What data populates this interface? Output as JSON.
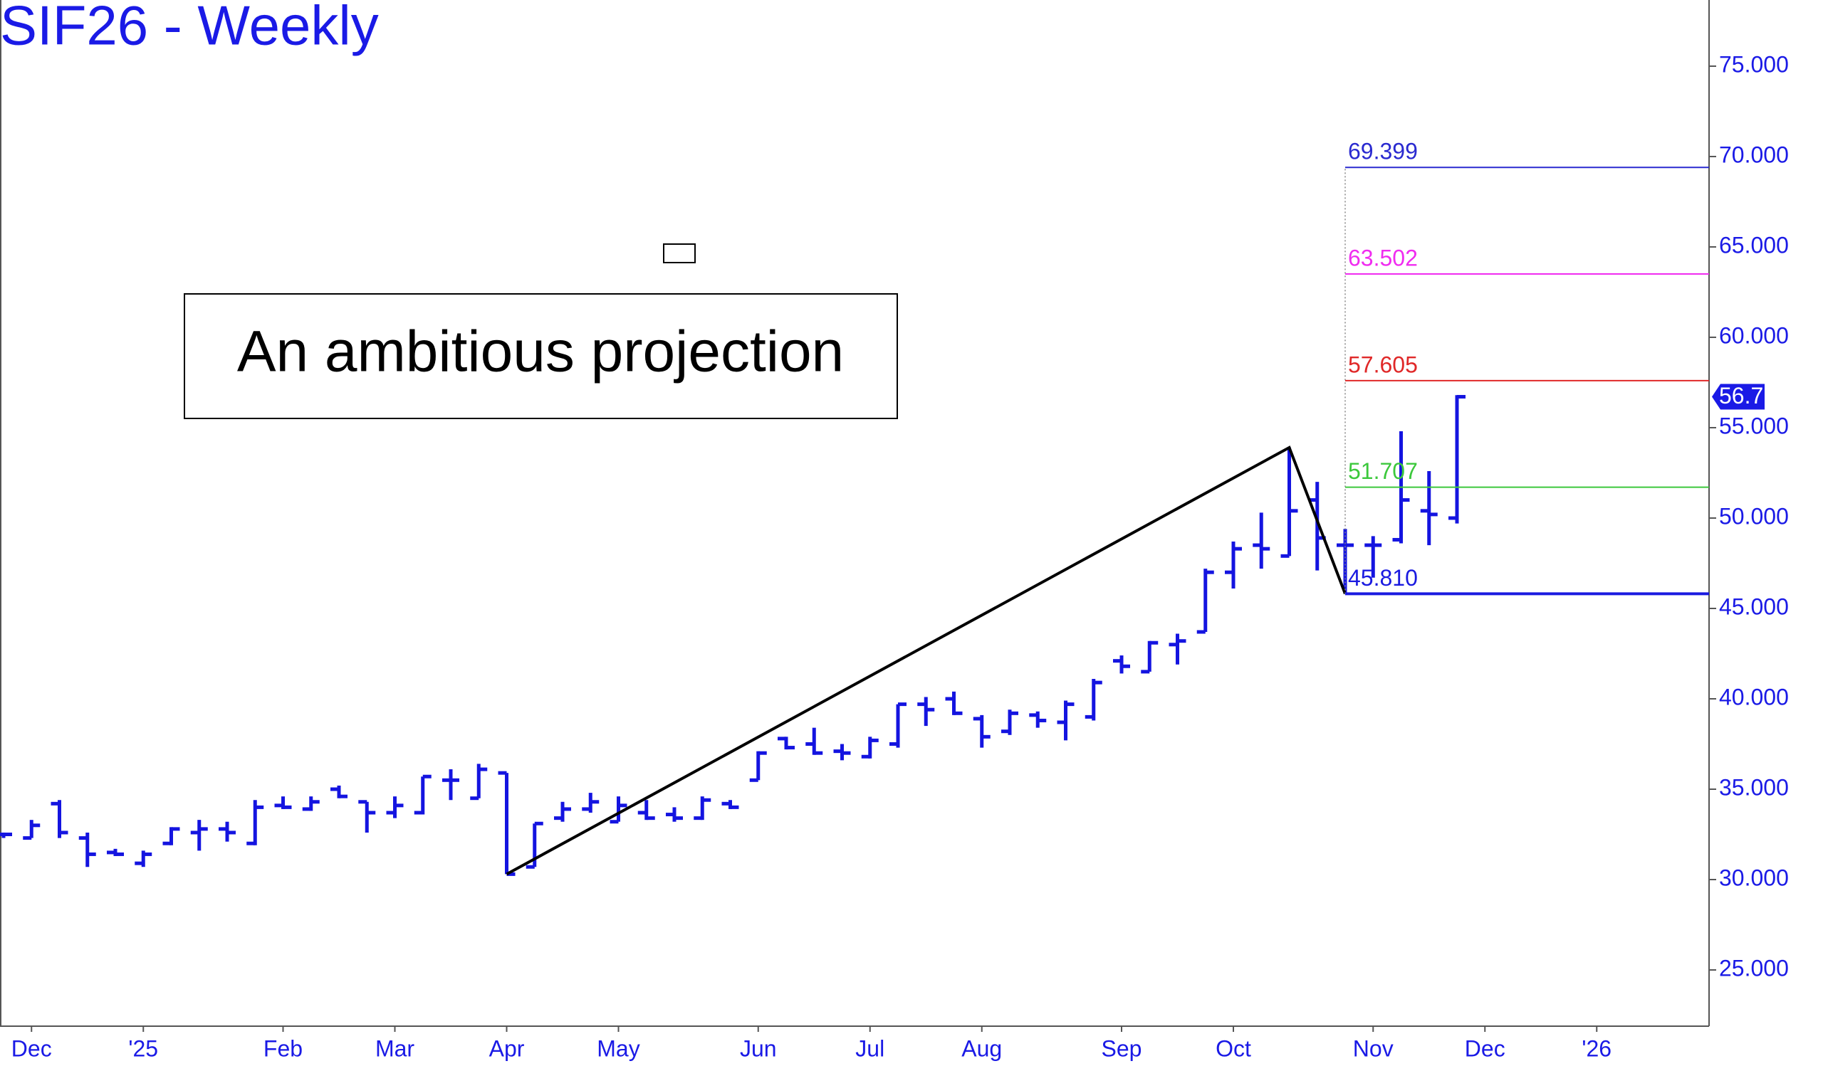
{
  "chart_data": {
    "type": "ohlc",
    "title": "SIF26 - Weekly",
    "annotation": "An ambitious projection",
    "color": "#1414e0",
    "categories": [
      null,
      "Dec",
      null,
      null,
      null,
      "'25",
      null,
      null,
      null,
      null,
      "Feb",
      null,
      null,
      null,
      "Mar",
      null,
      null,
      null,
      "Apr",
      null,
      null,
      null,
      "May",
      null,
      null,
      null,
      null,
      "Jun",
      null,
      null,
      null,
      "Jul",
      null,
      null,
      null,
      "Aug",
      null,
      null,
      null,
      null,
      "Sep",
      null,
      null,
      null,
      "Oct",
      null,
      null,
      null,
      null,
      "Nov",
      null,
      null,
      null,
      "Dec",
      null,
      null,
      null,
      "'26"
    ],
    "open": [
      32.5,
      32.3,
      34.2,
      32.3,
      31.5,
      30.9,
      32.0,
      32.6,
      32.8,
      32.0,
      34.1,
      33.9,
      35.0,
      34.3,
      33.7,
      33.7,
      35.5,
      34.5,
      35.9,
      30.7,
      33.4,
      33.9,
      33.2,
      33.7,
      33.6,
      33.4,
      34.2,
      35.5,
      37.8,
      37.5,
      37.1,
      36.8,
      37.5,
      39.7,
      40.0,
      38.9,
      38.2,
      39.1,
      38.7,
      39.0,
      42.1,
      41.5,
      43.0,
      43.7,
      47.0,
      48.5,
      47.9,
      51.0,
      48.5,
      48.5,
      48.8,
      50.4,
      50.0,
      null,
      null,
      null,
      null,
      null
    ],
    "high": [
      32.6,
      33.3,
      34.4,
      32.6,
      31.7,
      31.6,
      32.9,
      33.3,
      33.2,
      34.4,
      34.6,
      34.6,
      35.2,
      34.3,
      34.6,
      35.7,
      36.1,
      36.4,
      35.9,
      33.1,
      34.3,
      34.8,
      34.6,
      34.4,
      34.0,
      34.6,
      34.4,
      37.1,
      37.9,
      38.4,
      37.5,
      37.9,
      39.7,
      40.1,
      40.4,
      39.1,
      39.4,
      39.3,
      39.9,
      41.1,
      42.4,
      43.2,
      43.6,
      47.2,
      48.7,
      50.3,
      53.9,
      52.0,
      49.4,
      49.0,
      54.8,
      52.6,
      56.8,
      null,
      null,
      null,
      null,
      null
    ],
    "low": [
      32.3,
      32.3,
      32.3,
      30.7,
      31.3,
      30.7,
      31.9,
      31.6,
      32.1,
      31.9,
      33.9,
      33.8,
      34.5,
      32.6,
      33.4,
      33.6,
      34.4,
      34.5,
      30.3,
      30.7,
      33.2,
      33.7,
      33.2,
      33.3,
      33.2,
      33.3,
      33.9,
      35.5,
      37.2,
      36.9,
      36.6,
      36.7,
      37.3,
      38.5,
      39.1,
      37.3,
      38.0,
      38.4,
      37.7,
      38.8,
      41.4,
      41.5,
      41.9,
      43.7,
      46.1,
      47.2,
      47.9,
      47.1,
      45.81,
      46.7,
      48.6,
      48.5,
      49.7,
      null,
      null,
      null,
      null,
      null
    ],
    "close": [
      32.5,
      33.0,
      32.6,
      31.4,
      31.4,
      31.4,
      32.8,
      32.8,
      32.6,
      34.0,
      34.0,
      34.3,
      34.6,
      33.7,
      34.1,
      35.7,
      35.5,
      36.1,
      30.3,
      33.1,
      33.9,
      34.3,
      34.1,
      33.4,
      33.4,
      34.4,
      34.0,
      37.0,
      37.3,
      37.0,
      37.0,
      37.7,
      39.7,
      39.4,
      39.2,
      37.9,
      39.2,
      38.8,
      39.7,
      40.9,
      41.8,
      43.1,
      43.2,
      47.0,
      48.3,
      48.3,
      50.4,
      48.9,
      48.5,
      48.5,
      51.0,
      50.2,
      56.711,
      null,
      null,
      null,
      null,
      null
    ],
    "ylim": [
      21.89,
      78.66
    ],
    "yticks": [
      {
        "value": 25,
        "label": "25.000"
      },
      {
        "value": 30,
        "label": "30.000"
      },
      {
        "value": 35,
        "label": "35.000"
      },
      {
        "value": 40,
        "label": "40.000"
      },
      {
        "value": 45,
        "label": "45.000"
      },
      {
        "value": 50,
        "label": "50.000"
      },
      {
        "value": 55,
        "label": "55.000"
      },
      {
        "value": 60,
        "label": "60.000"
      },
      {
        "value": 65,
        "label": "65.000"
      },
      {
        "value": 70,
        "label": "70.000"
      },
      {
        "value": 75,
        "label": "75.000"
      }
    ],
    "levels": [
      {
        "value": 69.399,
        "label": "69.399",
        "color": "#2a2ad0"
      },
      {
        "value": 63.502,
        "label": "63.502",
        "color": "#f02cf0"
      },
      {
        "value": 57.605,
        "label": "57.605",
        "color": "#e02828"
      },
      {
        "value": 51.707,
        "label": "51.707",
        "color": "#3cc83c"
      },
      {
        "value": 45.81,
        "label": "45.810",
        "color": "#1a1ae0"
      }
    ],
    "trendline": {
      "color": "#000000",
      "points": [
        {
          "index": 18,
          "value": 30.3
        },
        {
          "index": 46,
          "value": 53.9
        },
        {
          "index": 48,
          "value": 45.81
        }
      ]
    }
  }
}
